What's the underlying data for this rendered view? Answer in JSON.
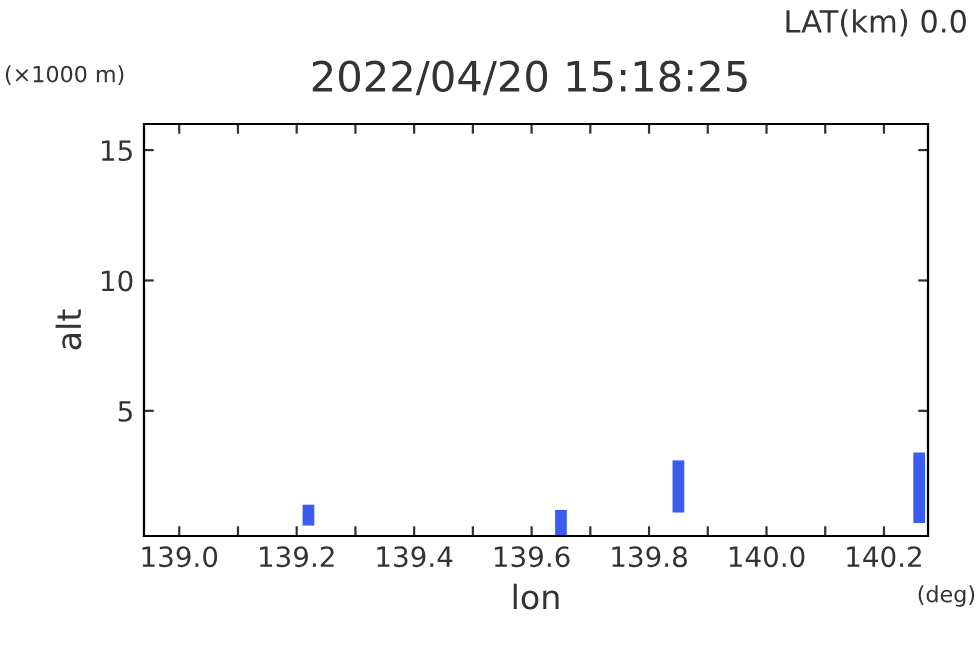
{
  "chart_data": {
    "type": "bar",
    "title": "2022/04/20 15:18:25",
    "subtitle": "LAT(km) 0.0",
    "xlabel": "lon",
    "ylabel": "alt",
    "annotations": [
      "(×1000 m)",
      "(deg)"
    ],
    "x": [
      139.22,
      139.65,
      139.85,
      140.26
    ],
    "base": [
      0.6,
      0.2,
      1.1,
      0.7
    ],
    "values": [
      0.8,
      1.0,
      2.0,
      2.7
    ],
    "color": "#3a5cf0",
    "xlim": [
      138.94,
      140.275
    ],
    "ylim": [
      0.2,
      16
    ],
    "xticks": [
      {
        "value": 139.0,
        "label": "139.0"
      },
      {
        "value": 139.1,
        "label": null
      },
      {
        "value": 139.2,
        "label": "139.2"
      },
      {
        "value": 139.3,
        "label": null
      },
      {
        "value": 139.4,
        "label": "139.4"
      },
      {
        "value": 139.5,
        "label": null
      },
      {
        "value": 139.6,
        "label": "139.6"
      },
      {
        "value": 139.7,
        "label": null
      },
      {
        "value": 139.8,
        "label": "139.8"
      },
      {
        "value": 139.9,
        "label": null
      },
      {
        "value": 140.0,
        "label": "140.0"
      },
      {
        "value": 140.1,
        "label": null
      },
      {
        "value": 140.2,
        "label": "140.2"
      }
    ],
    "yticks": [
      5,
      10,
      15
    ],
    "grid": false,
    "legend": false
  }
}
